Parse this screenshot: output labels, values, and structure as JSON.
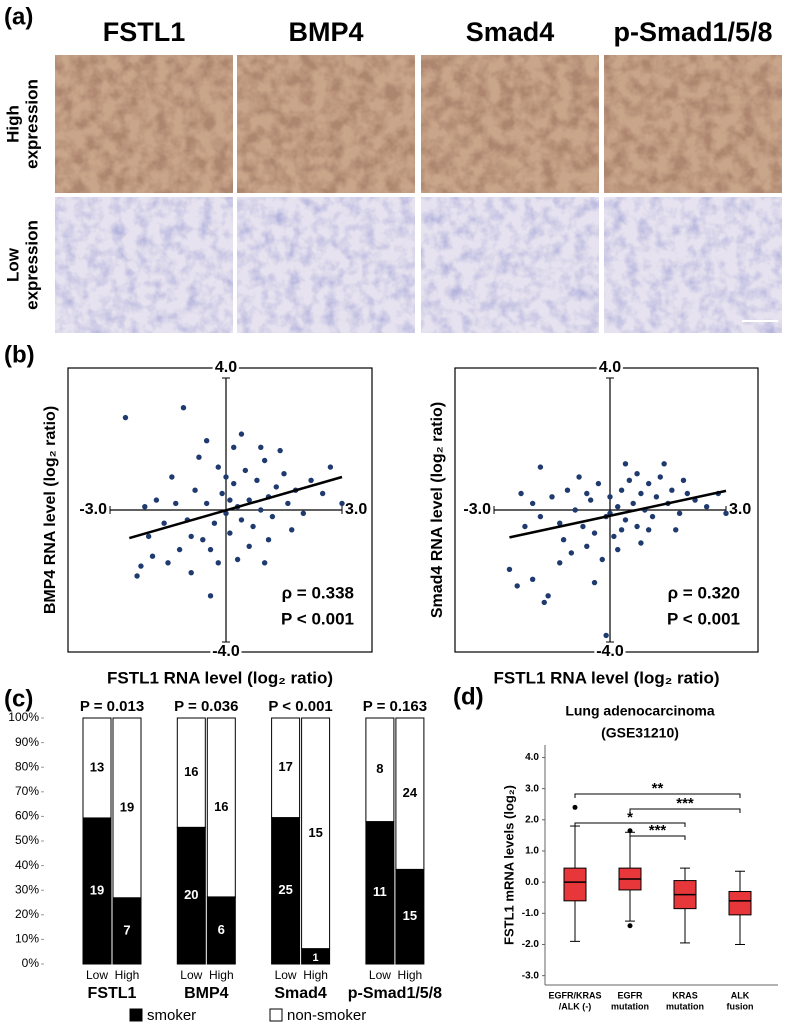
{
  "panel_labels": [
    "(a)",
    "(b)",
    "(c)",
    "(d)"
  ],
  "ihc": {
    "columns": [
      "FSTL1",
      "BMP4",
      "Smad4",
      "p-Smad1/5/8"
    ],
    "rows": [
      [
        "High",
        "expression"
      ],
      [
        "Low",
        "expression"
      ]
    ]
  },
  "chart_data": [
    {
      "type": "scatter",
      "xlabel": "FSTL1 RNA level (log₂ ratio)",
      "ylabel": "BMP4 RNA level (log₂ ratio)",
      "xlim": [
        -3,
        3
      ],
      "ylim": [
        -4,
        4
      ],
      "xticks": [
        {
          "value": -3,
          "label": "-3.0"
        },
        {
          "value": 3,
          "label": "3.0"
        }
      ],
      "yticks": [
        {
          "value": -4,
          "label": "-4.0"
        },
        {
          "value": 4,
          "label": "4.0"
        }
      ],
      "color": "#1f3a6e",
      "x": [
        -2.6,
        -1.1,
        -2.3,
        -2.2,
        -1.9,
        -1.5,
        -0.4,
        -0.9,
        -0.2,
        0.3,
        1.0,
        -2.0,
        -1.6,
        -1.3,
        -1.0,
        -0.8,
        -0.6,
        -0.5,
        -0.3,
        -0.1,
        0.0,
        0.1,
        0.2,
        0.3,
        0.4,
        0.5,
        0.6,
        0.7,
        0.8,
        0.9,
        1.0,
        1.1,
        1.2,
        1.3,
        1.5,
        1.6,
        1.8,
        2.0,
        2.2,
        2.5,
        3.0,
        2.7,
        -1.4,
        -0.7,
        0.2,
        -0.2,
        0.9,
        1.4,
        0.6,
        -0.4,
        0.1,
        -0.9,
        -1.8,
        -2.1,
        1.7,
        0.4,
        -0.5,
        1.1,
        -1.2,
        0.0
      ],
      "y": [
        2.8,
        3.1,
        -2.0,
        -1.7,
        -1.4,
        -1.6,
        -2.6,
        -1.9,
        -1.6,
        -1.5,
        -1.6,
        -0.8,
        -0.4,
        0.2,
        -0.3,
        0.6,
        -0.9,
        0.2,
        -0.4,
        0.5,
        -0.1,
        -0.7,
        0.8,
        0.1,
        -0.3,
        1.2,
        0.3,
        -0.5,
        0.9,
        0.0,
        1.5,
        0.4,
        -0.2,
        0.7,
        1.1,
        0.2,
        0.6,
        -0.1,
        0.9,
        0.5,
        0.2,
        1.3,
        1.0,
        1.6,
        1.9,
        1.3,
        1.9,
        1.8,
        -1.1,
        -1.2,
        0.3,
        -0.8,
        0.3,
        0.1,
        -0.6,
        2.3,
        2.1,
        -0.9,
        -1.2,
        1.0
      ],
      "fit": {
        "x": [
          -2.5,
          3.0
        ],
        "y": [
          -0.85,
          1.0
        ]
      },
      "annotations": [
        "ρ = 0.338",
        "P < 0.001"
      ]
    },
    {
      "type": "scatter",
      "xlabel": "FSTL1 RNA level (log₂ ratio)",
      "ylabel": "Smad4 RNA level (log₂ ratio)",
      "xlim": [
        -3,
        3
      ],
      "ylim": [
        -4,
        4
      ],
      "xticks": [
        {
          "value": -3,
          "label": "-3.0"
        },
        {
          "value": 3,
          "label": "3.0"
        }
      ],
      "yticks": [
        {
          "value": -4,
          "label": "-4.0"
        },
        {
          "value": 4,
          "label": "4.0"
        }
      ],
      "color": "#1f3a6e",
      "x": [
        -2.3,
        -2.0,
        -1.8,
        -1.5,
        -1.3,
        -1.1,
        -0.9,
        -0.7,
        -0.5,
        -0.3,
        -0.1,
        0.0,
        0.1,
        0.2,
        0.3,
        0.4,
        0.5,
        0.6,
        0.7,
        0.8,
        0.9,
        1.0,
        1.1,
        1.2,
        1.3,
        1.5,
        1.6,
        1.8,
        2.0,
        2.2,
        2.5,
        3.0,
        2.8,
        -2.6,
        -2.4,
        -2.0,
        -1.7,
        -1.6,
        -1.3,
        -1.0,
        -0.6,
        -0.2,
        0.2,
        -0.1,
        -0.4,
        0.8,
        -1.8,
        -0.8,
        0.4,
        1.4,
        -0.4,
        0.7,
        -1.2,
        1.9,
        -0.6,
        0.3,
        1.7,
        -2.2,
        0.0,
        1.0
      ],
      "y": [
        0.5,
        0.2,
        -0.2,
        0.4,
        -0.4,
        0.6,
        0.0,
        -0.5,
        0.3,
        0.8,
        -0.2,
        0.4,
        -0.8,
        0.1,
        0.6,
        -0.3,
        0.9,
        0.2,
        -0.5,
        0.5,
        0.0,
        0.8,
        -0.2,
        0.4,
        1.0,
        0.2,
        0.6,
        -0.1,
        0.5,
        0.3,
        0.1,
        -0.1,
        0.5,
        -1.8,
        -2.3,
        -2.1,
        -2.8,
        -2.6,
        -1.6,
        -1.3,
        -1.1,
        -1.5,
        -1.2,
        -3.8,
        -2.2,
        -1.0,
        1.3,
        1.0,
        1.4,
        1.4,
        -0.7,
        1.1,
        -0.9,
        0.9,
        0.5,
        -0.6,
        -0.6,
        -0.5,
        -0.1,
        -0.6
      ],
      "fit": {
        "x": [
          -2.6,
          3.0
        ],
        "y": [
          -0.83,
          0.58
        ]
      },
      "annotations": [
        "ρ = 0.320",
        "P < 0.001"
      ]
    },
    {
      "type": "bar",
      "stacked": "percent",
      "categories": [
        "Low",
        "High",
        "Low",
        "High",
        "Low",
        "High",
        "Low",
        "High"
      ],
      "groups": [
        "FSTL1",
        "BMP4",
        "Smad4",
        "p-Smad1/5/8"
      ],
      "group_annotations": [
        "P = 0.013",
        "P = 0.036",
        "P < 0.001",
        "P = 0.163"
      ],
      "ylim": [
        0,
        100
      ],
      "yticks": [
        {
          "value": 0,
          "label": "0%"
        },
        {
          "value": 10,
          "label": "10%"
        },
        {
          "value": 20,
          "label": "20%"
        },
        {
          "value": 30,
          "label": "30%"
        },
        {
          "value": 40,
          "label": "40%"
        },
        {
          "value": 50,
          "label": "50%"
        },
        {
          "value": 60,
          "label": "60%"
        },
        {
          "value": 70,
          "label": "70%"
        },
        {
          "value": 80,
          "label": "80%"
        },
        {
          "value": 90,
          "label": "90%"
        },
        {
          "value": 100,
          "label": "100%"
        }
      ],
      "series": [
        {
          "name": "smoker",
          "color": "#000000",
          "values": [
            19,
            7,
            20,
            6,
            25,
            1,
            11,
            15
          ]
        },
        {
          "name": "non-smoker",
          "color": "#ffffff",
          "values": [
            13,
            19,
            16,
            16,
            17,
            15,
            8,
            24
          ]
        }
      ],
      "legend": "bottom"
    },
    {
      "type": "box",
      "title": "Lung adenocarcinoma",
      "subtitle": "(GSE31210)",
      "ylabel": "FSTL1 mRNA levels (log₂)",
      "categories": [
        [
          "EGFR/KRAS",
          "/ALK (-)"
        ],
        [
          "EGFR",
          "mutation"
        ],
        [
          "KRAS",
          "mutation"
        ],
        [
          "ALK",
          "fusion"
        ]
      ],
      "ylim": [
        -3.3,
        4.4
      ],
      "yticks": [
        {
          "value": 4,
          "label": "4.0"
        },
        {
          "value": 3,
          "label": "3.0"
        },
        {
          "value": 2,
          "label": "2.0"
        },
        {
          "value": 1,
          "label": "1.0"
        },
        {
          "value": 0,
          "label": "0.0"
        },
        {
          "value": -1,
          "label": "-1.0"
        },
        {
          "value": -2,
          "label": "-2.0"
        },
        {
          "value": -3,
          "label": "-3.0"
        }
      ],
      "color": "#e8373a",
      "boxes": [
        {
          "whislo": -1.9,
          "q1": -0.6,
          "med": 0.0,
          "q3": 0.45,
          "whishi": 1.8,
          "fliers": [
            2.4
          ]
        },
        {
          "whislo": -1.25,
          "q1": -0.25,
          "med": 0.1,
          "q3": 0.45,
          "whishi": 1.6,
          "fliers": [
            1.65,
            -1.4
          ]
        },
        {
          "whislo": -1.95,
          "q1": -0.85,
          "med": -0.4,
          "q3": 0.05,
          "whishi": 0.45,
          "fliers": []
        },
        {
          "whislo": -2.0,
          "q1": -1.05,
          "med": -0.6,
          "q3": -0.3,
          "whishi": 0.35,
          "fliers": []
        }
      ],
      "comparisons": [
        {
          "from": 0,
          "to": 3,
          "label": "**"
        },
        {
          "from": 1,
          "to": 3,
          "label": "***"
        },
        {
          "from": 0,
          "to": 2,
          "label": "*"
        },
        {
          "from": 1,
          "to": 2,
          "label": "***"
        }
      ]
    }
  ]
}
